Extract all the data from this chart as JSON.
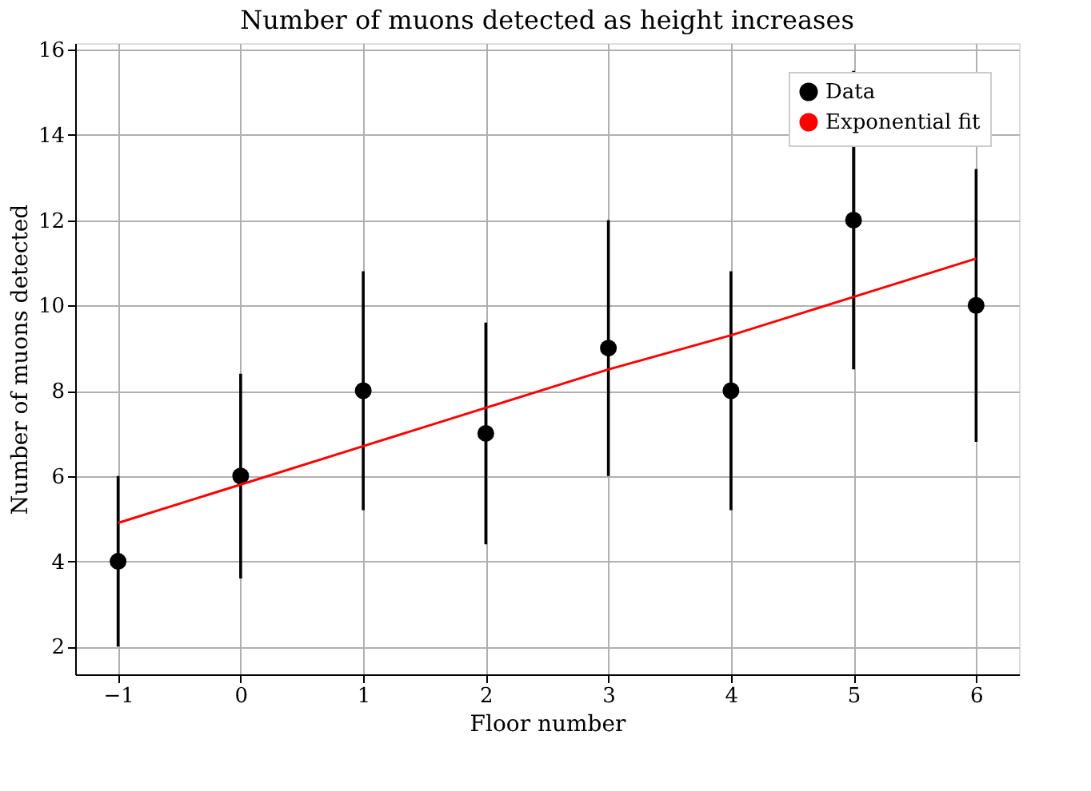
{
  "chart_data": {
    "type": "scatter",
    "title": "Number of muons detected as height increases",
    "xlabel": "Floor number",
    "ylabel": "Number of muons detected",
    "xlim": [
      -1.35,
      6.35
    ],
    "xticks": [
      {
        "value": -1,
        "label": "−1"
      },
      0,
      1,
      2,
      3,
      4,
      5,
      6
    ],
    "ylim": [
      1.35,
      16.15
    ],
    "yticks": [
      2,
      4,
      6,
      8,
      10,
      12,
      14,
      16
    ],
    "grid": true,
    "legend": "top right",
    "series": [
      {
        "name": "Data",
        "marker": "circle",
        "color": "#000000",
        "x": [
          -1,
          0,
          1,
          2,
          3,
          4,
          5,
          6
        ],
        "values": [
          4,
          6,
          8,
          7,
          9,
          8,
          12,
          10
        ],
        "errors": [
          2,
          2.4,
          2.8,
          2.6,
          3,
          2.8,
          3.5,
          3.2
        ]
      },
      {
        "name": "Exponential fit",
        "type": "line",
        "color": "#ff0000",
        "x": [
          -1,
          0,
          1,
          2,
          3,
          4,
          5,
          6
        ],
        "values": [
          4.9,
          5.8,
          6.7,
          7.6,
          8.5,
          9.3,
          10.2,
          11.1
        ]
      }
    ]
  }
}
